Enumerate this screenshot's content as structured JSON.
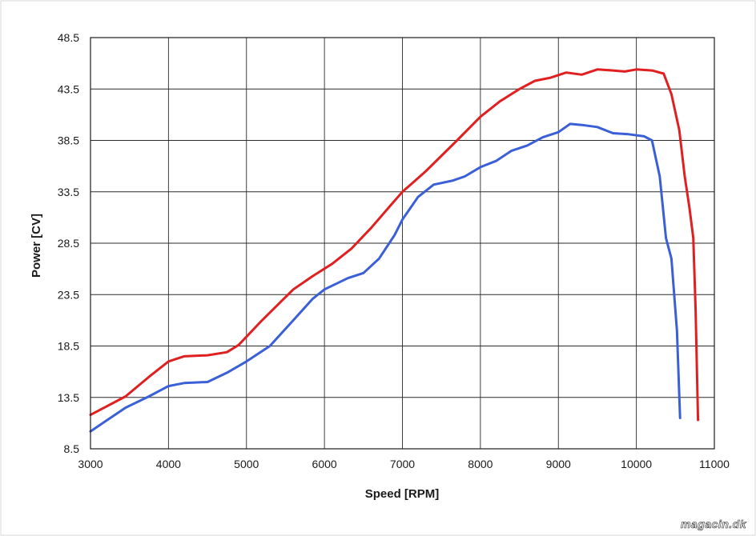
{
  "chart_data": {
    "type": "line",
    "xlabel": "Speed [RPM]",
    "ylabel": "Power [CV]",
    "xlim": [
      3000,
      11000
    ],
    "ylim": [
      8.5,
      48.5
    ],
    "x_ticks": [
      "3000",
      "4000",
      "5000",
      "6000",
      "7000",
      "8000",
      "9000",
      "10000",
      "11000"
    ],
    "y_ticks": [
      "8.5",
      "13.5",
      "18.5",
      "23.5",
      "28.5",
      "33.5",
      "38.5",
      "43.5",
      "48.5"
    ],
    "grid": true,
    "series": [
      {
        "color": "#e02020",
        "x": [
          3000,
          3450,
          3750,
          4000,
          4200,
          4500,
          4750,
          4900,
          5200,
          5600,
          5850,
          6100,
          6350,
          6600,
          6850,
          7000,
          7300,
          7700,
          8000,
          8250,
          8500,
          8700,
          8900,
          9100,
          9300,
          9500,
          9700,
          9850,
          10000,
          10200,
          10350,
          10450,
          10550,
          10620,
          10680,
          10730,
          10760,
          10790
        ],
        "values": [
          11.8,
          13.6,
          15.5,
          17.0,
          17.5,
          17.6,
          17.9,
          18.6,
          21.0,
          24.0,
          25.3,
          26.5,
          28.0,
          30.0,
          32.2,
          33.5,
          35.5,
          38.5,
          40.8,
          42.3,
          43.5,
          44.3,
          44.6,
          45.1,
          44.9,
          45.4,
          45.3,
          45.2,
          45.4,
          45.3,
          45.0,
          43.0,
          39.5,
          35.0,
          32.0,
          29.0,
          22.0,
          11.3
        ]
      },
      {
        "color": "#3a5fd6",
        "x": [
          3000,
          3450,
          3750,
          4000,
          4200,
          4500,
          4750,
          5000,
          5300,
          5600,
          5850,
          6000,
          6300,
          6500,
          6700,
          6900,
          7000,
          7200,
          7400,
          7650,
          7800,
          8000,
          8200,
          8400,
          8600,
          8800,
          9000,
          9150,
          9300,
          9500,
          9700,
          9900,
          10100,
          10200,
          10300,
          10380,
          10450,
          10520,
          10560
        ],
        "values": [
          10.2,
          12.5,
          13.6,
          14.6,
          14.9,
          15.0,
          15.9,
          17.0,
          18.5,
          21.0,
          23.1,
          24.0,
          25.1,
          25.6,
          27.0,
          29.3,
          30.8,
          33.0,
          34.2,
          34.6,
          35.0,
          35.9,
          36.5,
          37.5,
          38.0,
          38.8,
          39.3,
          40.1,
          40.0,
          39.8,
          39.2,
          39.1,
          38.9,
          38.5,
          35.0,
          29.0,
          27.0,
          20.0,
          11.5
        ]
      }
    ]
  },
  "watermark": "magacin.dk"
}
